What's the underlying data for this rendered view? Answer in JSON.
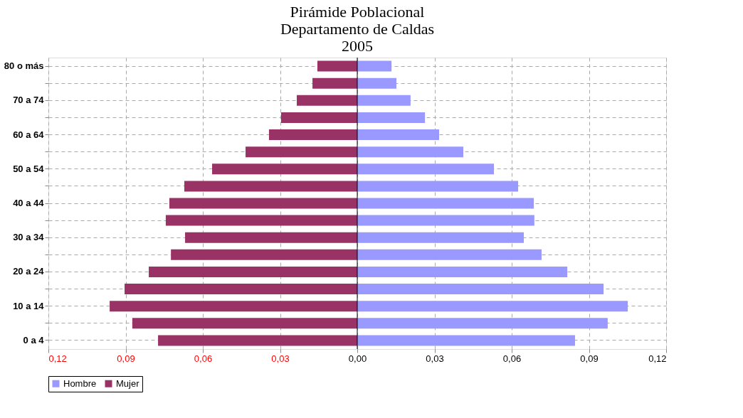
{
  "chart_data": {
    "type": "bar",
    "orientation": "horizontal",
    "title": "Pirámide Poblacional\nDepartamento de Caldas\n2005",
    "categories": [
      "80 o más",
      null,
      "70 a 74",
      null,
      "60 a 64",
      null,
      "50 a 54",
      null,
      "40 a 44",
      null,
      "30 a 34",
      null,
      "20 a 24",
      null,
      "10 a 14",
      null,
      "0 a 4"
    ],
    "series": [
      {
        "name": "Hombre",
        "color": "#9999ff",
        "values": [
          0.0133,
          0.0152,
          0.0207,
          0.0263,
          0.0318,
          0.0412,
          0.0531,
          0.0625,
          0.0686,
          0.0688,
          0.0647,
          0.0716,
          0.0816,
          0.0957,
          0.1051,
          0.0973,
          0.0846
        ]
      },
      {
        "name": "Mujer",
        "color": "#993366",
        "values": [
          -0.0155,
          -0.0174,
          -0.0235,
          -0.0296,
          -0.0343,
          -0.0434,
          -0.0564,
          -0.0672,
          -0.073,
          -0.0744,
          -0.0669,
          -0.0724,
          -0.081,
          -0.0904,
          -0.0962,
          -0.0874,
          -0.0774
        ]
      }
    ],
    "xlim": [
      -0.12,
      0.12
    ],
    "xticks": [
      {
        "value": -0.12,
        "label": "0,12"
      },
      {
        "value": -0.09,
        "label": "0,09"
      },
      {
        "value": -0.06,
        "label": "0,06"
      },
      {
        "value": -0.03,
        "label": "0,03"
      },
      {
        "value": 0,
        "label": "0,00"
      },
      {
        "value": 0.03,
        "label": "0,03"
      },
      {
        "value": 0.06,
        "label": "0,06"
      },
      {
        "value": 0.09,
        "label": "0,09"
      },
      {
        "value": 0.12,
        "label": "0,12"
      }
    ],
    "grid": true,
    "legend": "bottom",
    "stacked": true
  }
}
